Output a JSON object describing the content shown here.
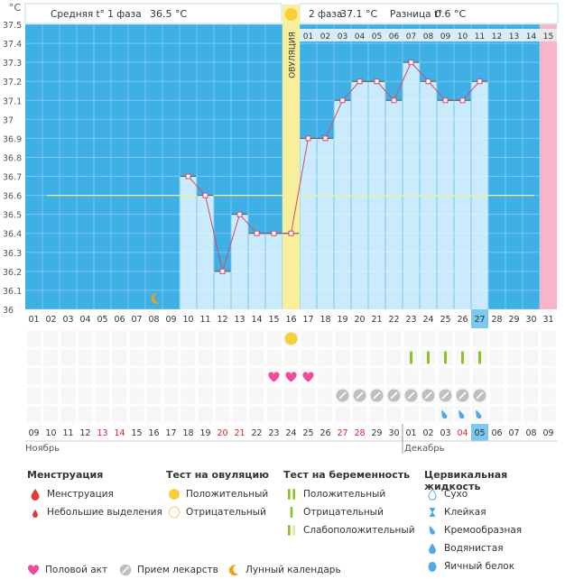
{
  "header": {
    "unit": "°C",
    "phase1_label": "Средняя t° 1 фаза",
    "phase1_value": "36.5 °C",
    "phase2_label": "2 фаза",
    "phase2_value": "37.1 °C",
    "diff_label": "Разница t°",
    "diff_value": "0.6 °C"
  },
  "chart_data": {
    "type": "line",
    "cycle_days": [
      "01",
      "02",
      "03",
      "04",
      "05",
      "06",
      "07",
      "08",
      "09",
      "10",
      "11",
      "12",
      "13",
      "14",
      "15",
      "16",
      "17",
      "18",
      "19",
      "20",
      "21",
      "22",
      "23",
      "24",
      "25",
      "26",
      "27",
      "28",
      "29",
      "30",
      "31"
    ],
    "y_ticks": [
      "36",
      "36.1",
      "36.2",
      "36.3",
      "36.4",
      "36.5",
      "36.6",
      "36.7",
      "36.8",
      "36.9",
      "37",
      "37.1",
      "37.2",
      "37.3",
      "37.4",
      "37.5"
    ],
    "ylim": [
      36.0,
      37.5
    ],
    "temperatures": [
      {
        "day": 10,
        "value": 36.7
      },
      {
        "day": 11,
        "value": 36.6
      },
      {
        "day": 12,
        "value": 36.2
      },
      {
        "day": 13,
        "value": 36.5
      },
      {
        "day": 14,
        "value": 36.4
      },
      {
        "day": 15,
        "value": 36.4
      },
      {
        "day": 16,
        "value": 36.4
      },
      {
        "day": 17,
        "value": 36.9
      },
      {
        "day": 18,
        "value": 36.9
      },
      {
        "day": 19,
        "value": 37.1
      },
      {
        "day": 20,
        "value": 37.2
      },
      {
        "day": 21,
        "value": 37.2
      },
      {
        "day": 22,
        "value": 37.1
      },
      {
        "day": 23,
        "value": 37.3
      },
      {
        "day": 24,
        "value": 37.2
      },
      {
        "day": 25,
        "value": 37.1
      },
      {
        "day": 26,
        "value": 37.1
      },
      {
        "day": 27,
        "value": 37.2
      }
    ],
    "coverline": 36.6,
    "ovulation_day": 16,
    "ovulation_label": "ОВУЛЯЦИЯ",
    "luteal_days": [
      "01",
      "02",
      "03",
      "04",
      "05",
      "06",
      "07",
      "08",
      "09",
      "10",
      "11",
      "12",
      "13",
      "14"
    ],
    "next_cycle_label": "15",
    "today_cycle_day": 27,
    "lunar_day": 8,
    "ovulation_test_positive_days": [
      16
    ],
    "intercourse_days": [
      15,
      16,
      17
    ],
    "pregnancy_test_days": [
      23,
      24,
      25,
      26,
      27
    ],
    "medication_days": [
      19,
      20,
      21,
      22,
      23,
      24,
      25,
      26,
      27
    ],
    "cervical_fluid_days": [
      25,
      26,
      27
    ],
    "dates": [
      "09",
      "10",
      "11",
      "12",
      "13",
      "14",
      "15",
      "16",
      "17",
      "18",
      "19",
      "20",
      "21",
      "22",
      "23",
      "24",
      "25",
      "26",
      "27",
      "28",
      "29",
      "30",
      "01",
      "02",
      "03",
      "04",
      "05",
      "06",
      "07",
      "08",
      "09"
    ],
    "weekend_date_days": [
      5,
      6,
      12,
      13,
      19,
      20,
      26
    ],
    "month1_label": "Ноябрь",
    "month2_label": "Декабрь"
  },
  "colors": {
    "axis_bg": "#3fb0e5",
    "bar_fill": "#c9ebfb",
    "ovulation": "#f9ee9c",
    "next_cycle": "#f7b5c8",
    "temp_line": "#d24a6e",
    "coverline": "#f1ee99",
    "today": "#7cc9ef",
    "heart": "#f04a9a",
    "pill": "#bfbfbf",
    "test_green": "#8dc21f",
    "cervical": "#4fa9e4",
    "weekend_red": "#d8232a"
  },
  "legend": {
    "menstruation": {
      "title": "Менструация",
      "items": [
        "Менструация",
        "Небольшие выделения"
      ]
    },
    "ovulation_test": {
      "title": "Тест на овуляцию",
      "items": [
        "Положительный",
        "Отрицательный"
      ]
    },
    "pregnancy_test": {
      "title": "Тест на беременность",
      "items": [
        "Положительный",
        "Отрицательный",
        "Слабоположительный"
      ]
    },
    "cervical_fluid": {
      "title": "Цервикальная жидкость",
      "items": [
        "Сухо",
        "Клейкая",
        "Кремообразная",
        "Водянистая",
        "Яичный белок"
      ]
    },
    "bottom": [
      "Половой акт",
      "Прием лекарств",
      "Лунный календарь"
    ]
  }
}
